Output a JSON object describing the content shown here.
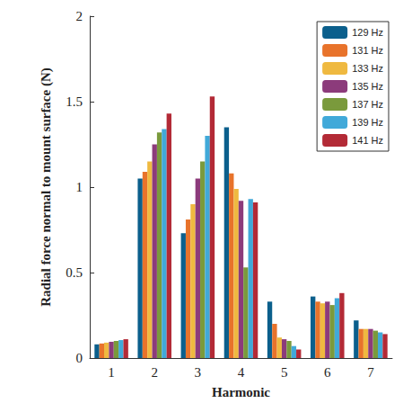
{
  "chart_data": {
    "type": "bar",
    "x_label": "Harmonic",
    "y_label": "Radial force normal to mount surface (N)",
    "categories": [
      "1",
      "2",
      "3",
      "4",
      "5",
      "6",
      "7"
    ],
    "series": [
      {
        "name": "129 Hz",
        "color": "#0b5f8c",
        "values": [
          0.08,
          1.05,
          0.73,
          1.35,
          0.33,
          0.36,
          0.22
        ]
      },
      {
        "name": "131 Hz",
        "color": "#e8732b",
        "values": [
          0.085,
          1.09,
          0.81,
          1.08,
          0.2,
          0.33,
          0.17
        ]
      },
      {
        "name": "133 Hz",
        "color": "#efb940",
        "values": [
          0.09,
          1.15,
          0.9,
          0.99,
          0.12,
          0.32,
          0.17
        ]
      },
      {
        "name": "135 Hz",
        "color": "#8c3b7b",
        "values": [
          0.095,
          1.25,
          1.05,
          0.92,
          0.11,
          0.33,
          0.17
        ]
      },
      {
        "name": "137 Hz",
        "color": "#7a9a3c",
        "values": [
          0.1,
          1.32,
          1.15,
          0.53,
          0.1,
          0.31,
          0.16
        ]
      },
      {
        "name": "139 Hz",
        "color": "#41a9d9",
        "values": [
          0.105,
          1.34,
          1.3,
          0.93,
          0.07,
          0.35,
          0.15
        ]
      },
      {
        "name": "141 Hz",
        "color": "#b32a36",
        "values": [
          0.11,
          1.43,
          1.53,
          0.91,
          0.05,
          0.38,
          0.14
        ]
      }
    ],
    "ylim": [
      0,
      2
    ],
    "yticks": [
      0,
      0.5,
      1,
      1.5,
      2
    ],
    "grid": false,
    "legend": "top-right"
  }
}
